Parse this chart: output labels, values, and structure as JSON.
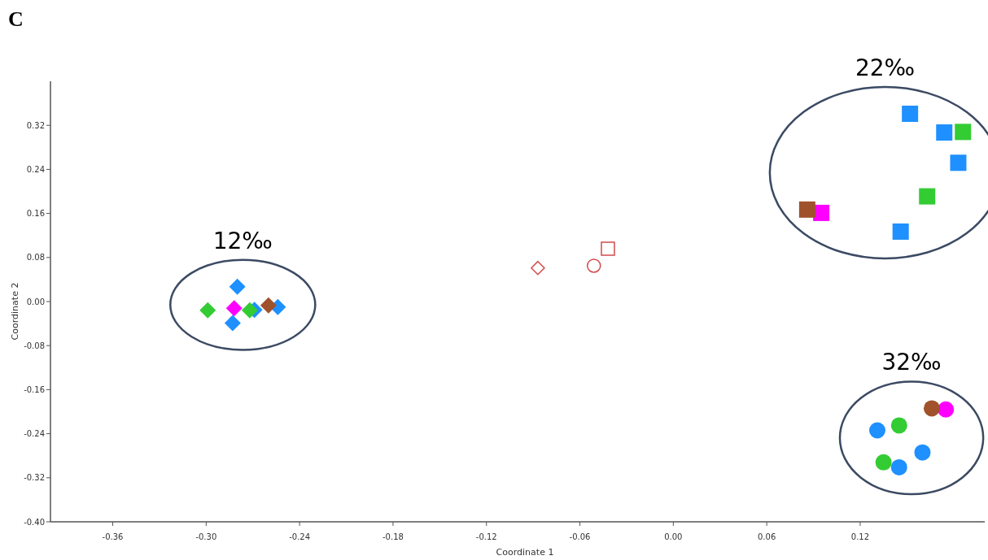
{
  "chart_data": {
    "type": "scatter",
    "title": "C",
    "xlabel": "Coordinate 1",
    "ylabel": "Coordinate 2",
    "xlim": [
      -0.4,
      0.2
    ],
    "ylim": [
      -0.4,
      0.4
    ],
    "xticks": [
      {
        "value": -0.36,
        "label": "-0.36"
      },
      {
        "value": -0.3,
        "label": "-0.30"
      },
      {
        "value": -0.24,
        "label": "-0.24"
      },
      {
        "value": -0.18,
        "label": "-0.18"
      },
      {
        "value": -0.12,
        "label": "-0.12"
      },
      {
        "value": -0.06,
        "label": "-0.06"
      },
      {
        "value": 0,
        "label": "0.00"
      },
      {
        "value": 0.06,
        "label": "0.06"
      },
      {
        "value": 0.12,
        "label": "0.12"
      }
    ],
    "yticks": [
      {
        "value": -0.4,
        "label": "-0.40"
      },
      {
        "value": -0.32,
        "label": "-0.32"
      },
      {
        "value": -0.24,
        "label": "-0.24"
      },
      {
        "value": -0.16,
        "label": "-0.16"
      },
      {
        "value": -0.08,
        "label": "-0.08"
      },
      {
        "value": 0,
        "label": "0.00"
      },
      {
        "value": 0.08,
        "label": "0.08"
      },
      {
        "value": 0.16,
        "label": "0.16"
      },
      {
        "value": 0.24,
        "label": "0.24"
      },
      {
        "value": 0.32,
        "label": "0.32"
      }
    ],
    "annotations": [
      "12‰",
      "22‰",
      "32‰"
    ],
    "series": [
      {
        "color": "#1e90ff",
        "marker": "diamond",
        "x": [
          -0.28,
          -0.283,
          -0.269,
          -0.254
        ],
        "values": [
          0.027,
          -0.039,
          -0.015,
          -0.01
        ]
      },
      {
        "color": "#33cc33",
        "marker": "diamond",
        "x": [
          -0.299,
          -0.272
        ],
        "values": [
          -0.016,
          -0.016
        ]
      },
      {
        "color": "#ff00ff",
        "marker": "diamond",
        "x": [
          -0.282
        ],
        "values": [
          -0.012
        ]
      },
      {
        "color": "#a0522d",
        "marker": "diamond",
        "x": [
          -0.26
        ],
        "values": [
          -0.007
        ]
      },
      {
        "color": "#1e90ff",
        "marker": "square",
        "x": [
          0.152,
          0.174,
          0.183,
          0.146
        ],
        "values": [
          0.341,
          0.307,
          0.252,
          0.127
        ]
      },
      {
        "color": "#33cc33",
        "marker": "square",
        "x": [
          0.186,
          0.163
        ],
        "values": [
          0.308,
          0.191
        ]
      },
      {
        "color": "#ff00ff",
        "marker": "square",
        "x": [
          0.095
        ],
        "values": [
          0.161
        ]
      },
      {
        "color": "#a0522d",
        "marker": "square",
        "x": [
          0.086
        ],
        "values": [
          0.167
        ]
      },
      {
        "color": "#1e90ff",
        "marker": "circle",
        "x": [
          0.131,
          0.16,
          0.145
        ],
        "values": [
          -0.234,
          -0.274,
          -0.301
        ]
      },
      {
        "color": "#33cc33",
        "marker": "circle",
        "x": [
          0.145,
          0.135
        ],
        "values": [
          -0.225,
          -0.292
        ]
      },
      {
        "color": "#ff00ff",
        "marker": "circle",
        "x": [
          0.175
        ],
        "values": [
          -0.196
        ]
      },
      {
        "color": "#a0522d",
        "marker": "circle",
        "x": [
          0.166
        ],
        "values": [
          -0.194
        ]
      },
      {
        "color": "#d24b4b",
        "marker": "diamond",
        "x": [
          -0.087
        ],
        "values": [
          0.061
        ]
      },
      {
        "color": "#d24b4b",
        "marker": "circle",
        "x": [
          -0.051
        ],
        "values": [
          0.065
        ]
      },
      {
        "color": "#d24b4b",
        "marker": "square",
        "x": [
          -0.042
        ],
        "values": [
          0.096
        ]
      }
    ]
  }
}
